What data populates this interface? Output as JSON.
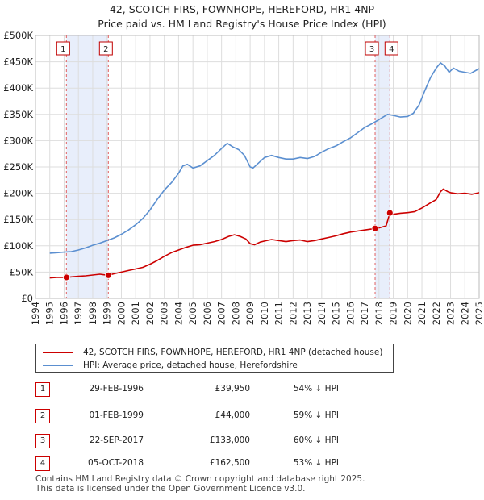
{
  "chart_data": {
    "type": "line",
    "title": "42, SCOTCH FIRS, FOWNHOPE, HEREFORD, HR1 4NP",
    "subtitle": "Price paid vs. HM Land Registry's House Price Index (HPI)",
    "xlim": [
      1994,
      2025
    ],
    "ylim": [
      0,
      500000
    ],
    "yticks": [
      0,
      50000,
      100000,
      150000,
      200000,
      250000,
      300000,
      350000,
      400000,
      450000,
      500000
    ],
    "ytick_labels": [
      "£0",
      "£50K",
      "£100K",
      "£150K",
      "£200K",
      "£250K",
      "£300K",
      "£350K",
      "£400K",
      "£450K",
      "£500K"
    ],
    "xticks": [
      "1994",
      "1995",
      "1996",
      "1997",
      "1998",
      "1999",
      "2000",
      "2001",
      "2002",
      "2003",
      "2004",
      "2005",
      "2006",
      "2007",
      "2008",
      "2009",
      "2010",
      "2011",
      "2012",
      "2013",
      "2014",
      "2015",
      "2016",
      "2017",
      "2018",
      "2019",
      "2020",
      "2021",
      "2022",
      "2023",
      "2024",
      "2025"
    ],
    "grid": true,
    "series": [
      {
        "name": "42, SCOTCH FIRS, FOWNHOPE, HEREFORD, HR1 4NP (detached house)",
        "color": "#cc0000",
        "x": [
          1995.0,
          1995.5,
          1996.16,
          1996.5,
          1997.0,
          1997.5,
          1998.0,
          1998.5,
          1999.0,
          1999.09,
          1999.5,
          2000.0,
          2000.5,
          2001.0,
          2001.5,
          2002.0,
          2002.5,
          2003.0,
          2003.5,
          2004.0,
          2004.5,
          2005.0,
          2005.5,
          2006.0,
          2006.5,
          2007.0,
          2007.5,
          2007.9,
          2008.3,
          2008.7,
          2009.0,
          2009.3,
          2009.7,
          2010.0,
          2010.5,
          2011.0,
          2011.5,
          2012.0,
          2012.5,
          2013.0,
          2013.5,
          2014.0,
          2014.5,
          2015.0,
          2015.5,
          2016.0,
          2016.5,
          2017.0,
          2017.5,
          2017.73,
          2018.0,
          2018.5,
          2018.76,
          2018.8,
          2019.0,
          2019.5,
          2020.0,
          2020.5,
          2021.0,
          2021.5,
          2022.0,
          2022.3,
          2022.5,
          2022.8,
          2023.0,
          2023.5,
          2024.0,
          2024.5,
          2025.0
        ],
        "y": [
          39000,
          40000,
          39950,
          41000,
          42000,
          43000,
          44500,
          46000,
          44200,
          44000,
          47000,
          50000,
          53000,
          56000,
          59000,
          65000,
          72000,
          80000,
          87000,
          92000,
          97000,
          101000,
          102000,
          105000,
          108000,
          112000,
          118000,
          121000,
          118000,
          113000,
          104000,
          102000,
          107000,
          109000,
          112000,
          110000,
          108000,
          110000,
          111000,
          108000,
          110000,
          113000,
          116000,
          119000,
          123000,
          126000,
          128000,
          130000,
          132000,
          133000,
          134000,
          138000,
          162500,
          158000,
          160000,
          162000,
          163000,
          165000,
          172000,
          180000,
          188000,
          203000,
          208000,
          203000,
          201000,
          199000,
          200000,
          198000,
          201000
        ]
      },
      {
        "name": "HPI: Average price, detached house, Herefordshire",
        "color": "#5b8fd0",
        "x": [
          1995.0,
          1995.5,
          1996.0,
          1996.5,
          1997.0,
          1997.5,
          1998.0,
          1998.5,
          1999.0,
          1999.5,
          2000.0,
          2000.5,
          2001.0,
          2001.5,
          2002.0,
          2002.5,
          2003.0,
          2003.5,
          2004.0,
          2004.3,
          2004.6,
          2005.0,
          2005.5,
          2006.0,
          2006.5,
          2007.0,
          2007.4,
          2007.8,
          2008.2,
          2008.6,
          2009.0,
          2009.2,
          2009.6,
          2010.0,
          2010.5,
          2011.0,
          2011.5,
          2012.0,
          2012.5,
          2013.0,
          2013.5,
          2014.0,
          2014.5,
          2015.0,
          2015.5,
          2016.0,
          2016.5,
          2017.0,
          2017.5,
          2018.0,
          2018.3,
          2018.6,
          2019.0,
          2019.5,
          2020.0,
          2020.4,
          2020.8,
          2021.2,
          2021.6,
          2022.0,
          2022.3,
          2022.6,
          2022.9,
          2023.2,
          2023.6,
          2024.0,
          2024.4,
          2024.8,
          2025.0
        ],
        "y": [
          86000,
          87000,
          88000,
          89000,
          92000,
          96000,
          101000,
          105000,
          110000,
          115000,
          122000,
          130000,
          140000,
          152000,
          168000,
          188000,
          206000,
          220000,
          238000,
          252000,
          255000,
          248000,
          252000,
          262000,
          272000,
          285000,
          295000,
          288000,
          283000,
          272000,
          250000,
          248000,
          258000,
          268000,
          272000,
          268000,
          265000,
          265000,
          268000,
          266000,
          270000,
          278000,
          285000,
          290000,
          298000,
          305000,
          315000,
          325000,
          332000,
          340000,
          345000,
          350000,
          348000,
          345000,
          346000,
          352000,
          368000,
          395000,
          420000,
          438000,
          448000,
          442000,
          430000,
          438000,
          432000,
          430000,
          428000,
          434000,
          437000
        ]
      }
    ],
    "transactions": [
      {
        "n": "1",
        "year": 1996.16,
        "price_value": 39950
      },
      {
        "n": "2",
        "year": 1999.09,
        "price_value": 44000
      },
      {
        "n": "3",
        "year": 2017.73,
        "price_value": 133000
      },
      {
        "n": "4",
        "year": 2018.76,
        "price_value": 162500
      }
    ]
  },
  "legend": {
    "property_label": "42, SCOTCH FIRS, FOWNHOPE, HEREFORD, HR1 4NP (detached house)",
    "hpi_label": "HPI: Average price, detached house, Herefordshire"
  },
  "transactions_table": [
    {
      "n": "1",
      "date": "29-FEB-1996",
      "price": "£39,950",
      "pct": "54% ↓ HPI"
    },
    {
      "n": "2",
      "date": "01-FEB-1999",
      "price": "£44,000",
      "pct": "59% ↓ HPI"
    },
    {
      "n": "3",
      "date": "22-SEP-2017",
      "price": "£133,000",
      "pct": "60% ↓ HPI"
    },
    {
      "n": "4",
      "date": "05-OCT-2018",
      "price": "£162,500",
      "pct": "53% ↓ HPI"
    }
  ],
  "footer": {
    "line1": "Contains HM Land Registry data © Crown copyright and database right 2025.",
    "line2": "This data is licensed under the Open Government Licence v3.0."
  },
  "colors": {
    "property": "#cc0000",
    "hpi": "#5b8fd0",
    "shade": "#e8eefb",
    "grid": "#dddddd"
  }
}
